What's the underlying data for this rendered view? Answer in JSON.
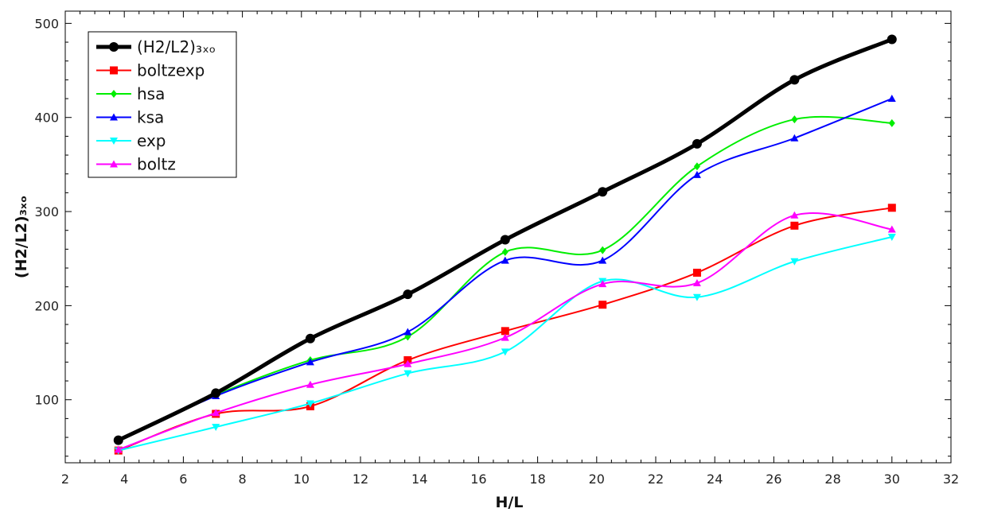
{
  "chart_data": {
    "type": "line",
    "xlabel": "H/L",
    "ylabel": "(H2/L2)₃ₓₒ",
    "xlim": [
      2,
      32
    ],
    "ylim": [
      33,
      513
    ],
    "xticks": [
      2,
      4,
      6,
      8,
      10,
      12,
      14,
      16,
      18,
      20,
      22,
      24,
      26,
      28,
      30,
      32
    ],
    "yticks": [
      100,
      200,
      300,
      400,
      500
    ],
    "grid": false,
    "legend_position": "top-left",
    "x": [
      3.8,
      7.1,
      10.3,
      13.6,
      16.9,
      20.2,
      23.4,
      26.7,
      30.0
    ],
    "series": [
      {
        "name": "(H2/L2)₃ₓₒ",
        "color": "#000000",
        "marker": "circle",
        "values": [
          57,
          107,
          165,
          212,
          270,
          321,
          372,
          440,
          483
        ]
      },
      {
        "name": "boltzexp",
        "color": "#ff0000",
        "marker": "square",
        "values": [
          46,
          85,
          93,
          142,
          173,
          201,
          235,
          285,
          304
        ]
      },
      {
        "name": "hsa",
        "color": "#00ee00",
        "marker": "diamond",
        "values": [
          57,
          105,
          142,
          167,
          257,
          259,
          348,
          398,
          394
        ]
      },
      {
        "name": "ksa",
        "color": "#0000ff",
        "marker": "triangle-up",
        "values": [
          57,
          104,
          140,
          172,
          248,
          248,
          339,
          378,
          420
        ]
      },
      {
        "name": "exp",
        "color": "#00ffff",
        "marker": "triangle-down",
        "values": [
          46,
          71,
          96,
          128,
          151,
          226,
          209,
          247,
          273
        ]
      },
      {
        "name": "boltz",
        "color": "#ff00ff",
        "marker": "triangle-up",
        "values": [
          47,
          86,
          116,
          138,
          166,
          223,
          224,
          296,
          281
        ]
      }
    ]
  }
}
